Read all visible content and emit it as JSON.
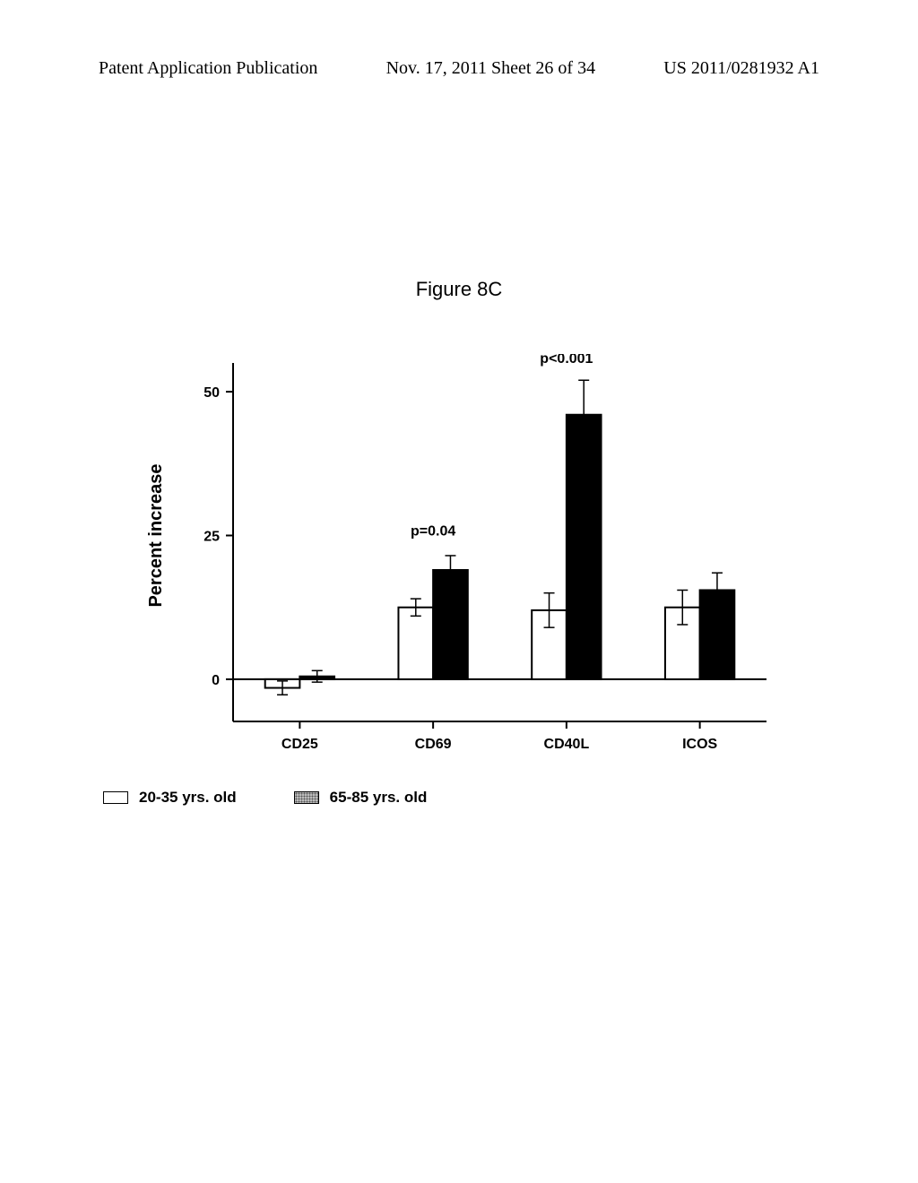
{
  "header": {
    "left": "Patent Application Publication",
    "center": "Nov. 17, 2011  Sheet 26 of 34",
    "right": "US 2011/0281932 A1"
  },
  "figure_title": "Figure 8C",
  "chart": {
    "type": "bar",
    "ylabel": "Percent increase",
    "ylabel_fontsize": 20,
    "ylabel_fontweight": "bold",
    "categories": [
      "CD25",
      "CD69",
      "CD40L",
      "ICOS"
    ],
    "axis_tick_fontsize": 16,
    "axis_tick_fontweight": "bold",
    "ylim": [
      -5,
      55
    ],
    "yticks": [
      0,
      25,
      50
    ],
    "series": [
      {
        "name": "20-35 yrs. old",
        "fill": "#ffffff",
        "stroke": "#000000",
        "values": [
          -1.5,
          12.5,
          12,
          12.5
        ],
        "error": [
          1.2,
          1.5,
          3,
          3
        ]
      },
      {
        "name": "65-85 yrs. old",
        "fill": "#000000",
        "stroke": "#000000",
        "values": [
          0.5,
          19,
          46,
          15.5
        ],
        "error": [
          1,
          2.5,
          6,
          3
        ]
      }
    ],
    "annotations": [
      {
        "category": "CD69",
        "text": "p=0.04",
        "y": 25,
        "fontweight": "bold",
        "fontsize": 16
      },
      {
        "category": "CD40L",
        "text": "p<0.001",
        "y": 55,
        "fontweight": "bold",
        "fontsize": 16
      }
    ],
    "bar_group_width": 0.52,
    "bar_stroke_width": 2,
    "axis_stroke": "#000000",
    "axis_stroke_width": 2
  },
  "legend": {
    "items": [
      {
        "label": "20-35 yrs. old",
        "fill": "#ffffff",
        "stroke": "#000000"
      },
      {
        "label": "65-85 yrs. old",
        "fill": "#888888",
        "pattern": "dots",
        "stroke": "#000000"
      }
    ],
    "fontsize": 17,
    "fontweight": "bold"
  }
}
